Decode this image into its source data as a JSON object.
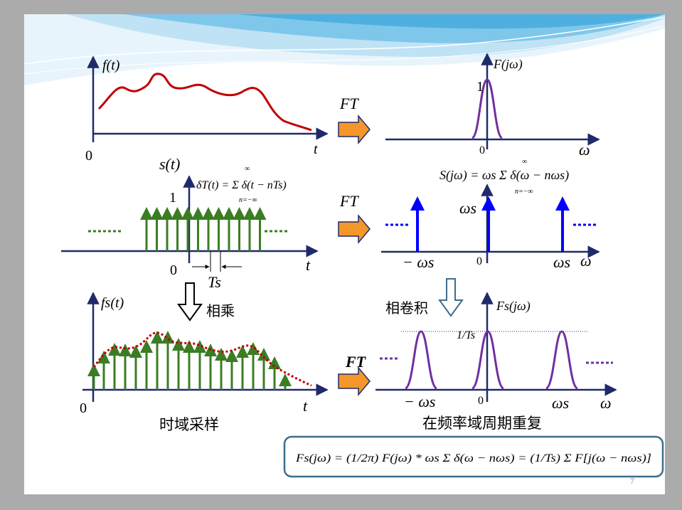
{
  "slide": {
    "page_number": "7"
  },
  "colors": {
    "axis": "#1f2a6b",
    "signal": "#c00000",
    "impulse": "#3b7d23",
    "spectrum_pulse": "#7030a0",
    "spectrum_impulse": "#0000ff",
    "arrow_orange": "#f5962a",
    "formula_border": "#3e6e8c"
  },
  "panels": {
    "f_t": {
      "ylabel": "f(t)",
      "origin": "0",
      "xlabel": "t"
    },
    "s_t": {
      "ylabel": "s(t)",
      "formula": "δT(t) = Σ δ(t − nTs)",
      "sum_upper": "∞",
      "sum_lower": "n=−∞",
      "unit": "1",
      "origin": "0",
      "xlabel": "t",
      "period": "Ts",
      "dots": "……"
    },
    "fs_t": {
      "ylabel": "fs(t)",
      "origin": "0",
      "xlabel": "t",
      "caption": "时域采样"
    },
    "F_jw": {
      "ylabel": "F(jω)",
      "peak": "1",
      "origin": "0",
      "xlabel": "ω"
    },
    "S_jw": {
      "formula": "S(jω) = ωs Σ δ(ω − nωs)",
      "sum_upper": "∞",
      "sum_lower": "n=−∞",
      "height": "ωs",
      "neg": "− ωs",
      "origin": "0",
      "pos": "ωs",
      "xlabel": "ω"
    },
    "Fs_jw": {
      "ylabel": "Fs(jω)",
      "level": "1/Ts",
      "neg": "− ωs",
      "origin": "0",
      "pos": "ωs",
      "xlabel": "ω",
      "caption": "在频率域周期重复"
    }
  },
  "arrows": {
    "ft_label": "FT",
    "multiply_label": "相乘",
    "convolve_label": "相卷积"
  },
  "bottom_formula": "Fs(jω) = (1/2π) F(jω) * ωs Σ δ(ω − nωs) = (1/Ts) Σ F[j(ω − nωs)]"
}
